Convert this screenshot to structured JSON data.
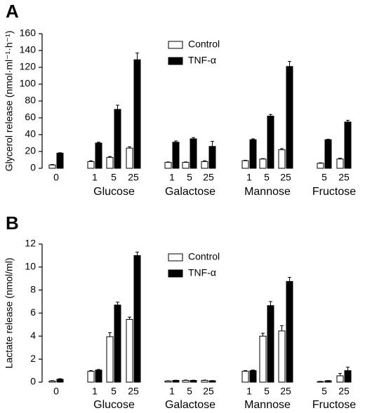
{
  "chart_data": [
    {
      "type": "bar",
      "panel_label": "A",
      "y_label": "Glycerol release (nmol·ml⁻¹·h⁻¹)",
      "groups": [
        {
          "categories": [
            "0"
          ]
        },
        {
          "name": "Glucose",
          "categories": [
            "1",
            "5",
            "25"
          ]
        },
        {
          "name": "Galactose",
          "categories": [
            "1",
            "5",
            "25"
          ]
        },
        {
          "name": "Mannose",
          "categories": [
            "1",
            "5",
            "25"
          ]
        },
        {
          "name": "Fructose",
          "categories": [
            "5",
            "25"
          ]
        }
      ],
      "series": [
        {
          "name": "Control",
          "color": "#ffffff",
          "values": [
            4,
            8,
            13,
            24,
            7,
            7,
            8,
            9,
            11,
            22,
            6,
            11
          ],
          "errors": [
            0.5,
            1,
            1,
            1.5,
            0.5,
            0.5,
            1,
            0.5,
            0.5,
            1.5,
            0.5,
            1
          ]
        },
        {
          "name": "TNF-α",
          "color": "#000000",
          "values": [
            18,
            30,
            70,
            129,
            31,
            35,
            26,
            34,
            62,
            121,
            34,
            55
          ],
          "errors": [
            0.5,
            1,
            5,
            8,
            1.5,
            1.5,
            6,
            1,
            2,
            6,
            0.5,
            2
          ]
        }
      ],
      "ylim": [
        0,
        160
      ],
      "yticks": [
        0,
        20,
        40,
        60,
        80,
        100,
        120,
        140,
        160
      ],
      "legend": "upper center"
    },
    {
      "type": "bar",
      "panel_label": "B",
      "y_label": "Lactate release (nmol/ml)",
      "groups": [
        {
          "categories": [
            "0"
          ]
        },
        {
          "name": "Glucose",
          "categories": [
            "1",
            "5",
            "25"
          ]
        },
        {
          "name": "Galactose",
          "categories": [
            "1",
            "5",
            "25"
          ]
        },
        {
          "name": "Mannose",
          "categories": [
            "1",
            "5",
            "25"
          ]
        },
        {
          "name": "Fructose",
          "categories": [
            "5",
            "25"
          ]
        }
      ],
      "series": [
        {
          "name": "Control",
          "color": "#ffffff",
          "values": [
            0.1,
            0.95,
            3.95,
            5.45,
            0.1,
            0.15,
            0.15,
            0.95,
            4.0,
            4.45,
            0.05,
            0.55
          ],
          "errors": [
            0.03,
            0.05,
            0.35,
            0.2,
            0.02,
            0.03,
            0.03,
            0.05,
            0.25,
            0.45,
            0.02,
            0.2
          ]
        },
        {
          "name": "TNF-α",
          "color": "#000000",
          "values": [
            0.25,
            1.05,
            6.7,
            11.0,
            0.15,
            0.15,
            0.12,
            1.0,
            6.65,
            8.75,
            0.12,
            1.0
          ],
          "errors": [
            0.05,
            0.05,
            0.25,
            0.3,
            0.02,
            0.02,
            0.02,
            0.05,
            0.35,
            0.35,
            0.02,
            0.3
          ]
        }
      ],
      "ylim": [
        0,
        12
      ],
      "yticks": [
        0,
        2,
        4,
        6,
        8,
        10,
        12
      ],
      "legend": "upper center"
    }
  ]
}
